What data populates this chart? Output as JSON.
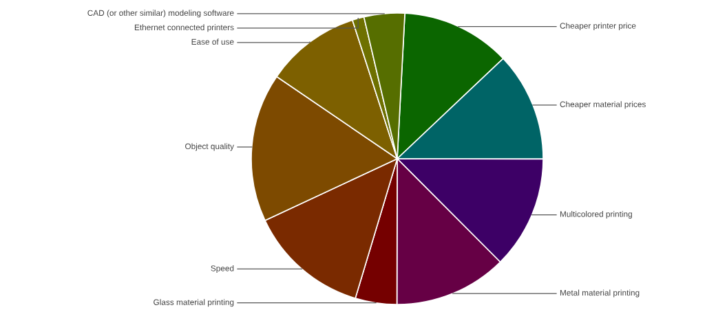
{
  "chart_data": {
    "type": "pie",
    "categories": [
      "Cheaper printer price",
      "Cheaper material prices",
      "Multicolored printing",
      "Metal material printing",
      "Glass material printing",
      "Speed",
      "Object quality",
      "Ease of use",
      "Ethernet connected printers",
      "CAD (or other similar) modeling software"
    ],
    "values": [
      12.1,
      12.1,
      12.5,
      12.5,
      4.6,
      13.4,
      16.5,
      10.5,
      1.3,
      4.5
    ],
    "colors": [
      "#0b6600",
      "#006466",
      "#3d0066",
      "#660045",
      "#750000",
      "#7a2a00",
      "#7d4a00",
      "#7d6000",
      "#6e7000",
      "#566e00"
    ],
    "legend": false
  }
}
